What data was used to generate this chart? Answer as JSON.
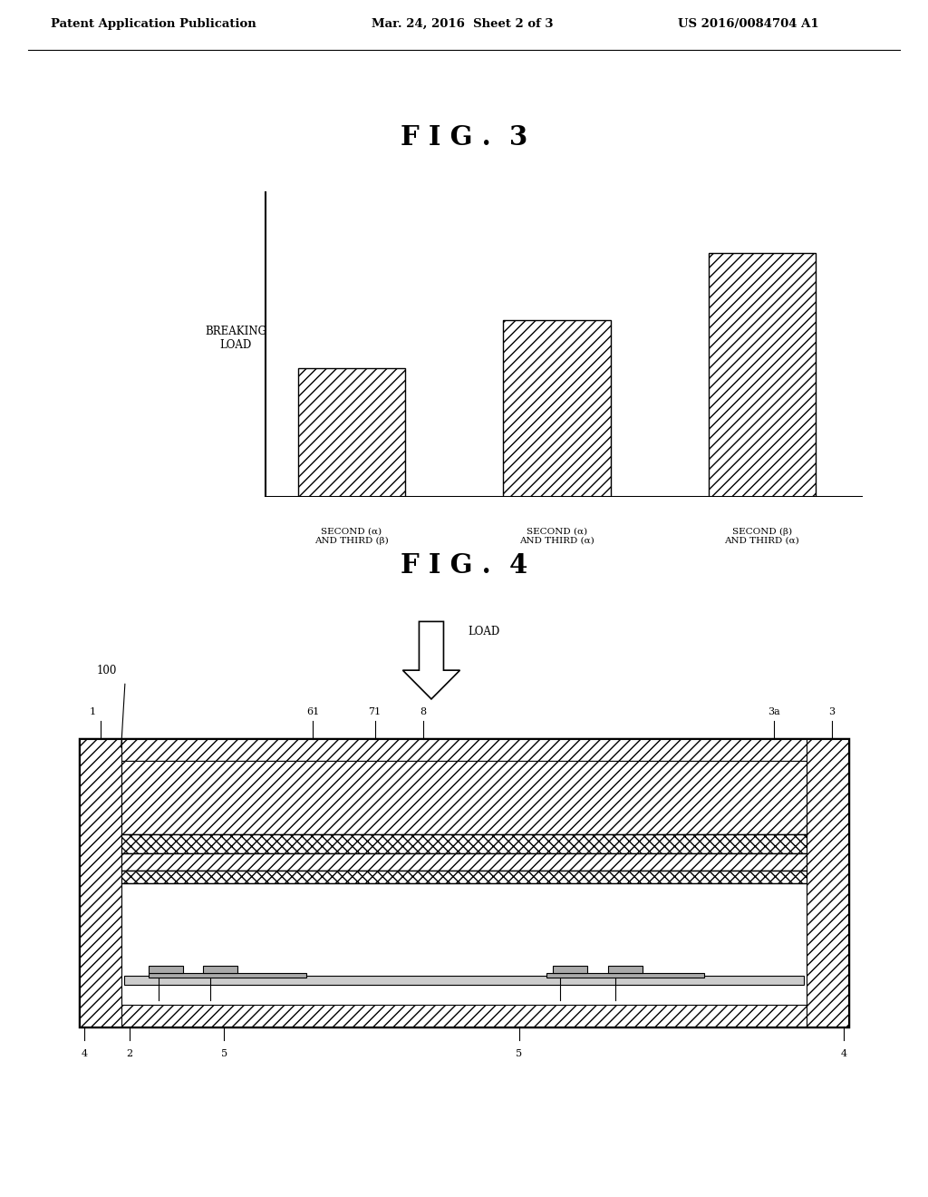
{
  "bg_color": "#ffffff",
  "header_left": "Patent Application Publication",
  "header_mid": "Mar. 24, 2016  Sheet 2 of 3",
  "header_right": "US 2016/0084704 A1",
  "fig3_title": "F I G .  3",
  "fig4_title": "F I G .  4",
  "bar_values": [
    0.42,
    0.58,
    0.8
  ],
  "bar_labels": [
    "SECOND (α)\nAND THIRD (β)",
    "SECOND (α)\nAND THIRD (α)",
    "SECOND (β)\nAND THIRD (α)"
  ],
  "ylabel": "BREAKING\nLOAD",
  "hatch": "///",
  "bar_color": "#ffffff",
  "bar_edgecolor": "#000000"
}
